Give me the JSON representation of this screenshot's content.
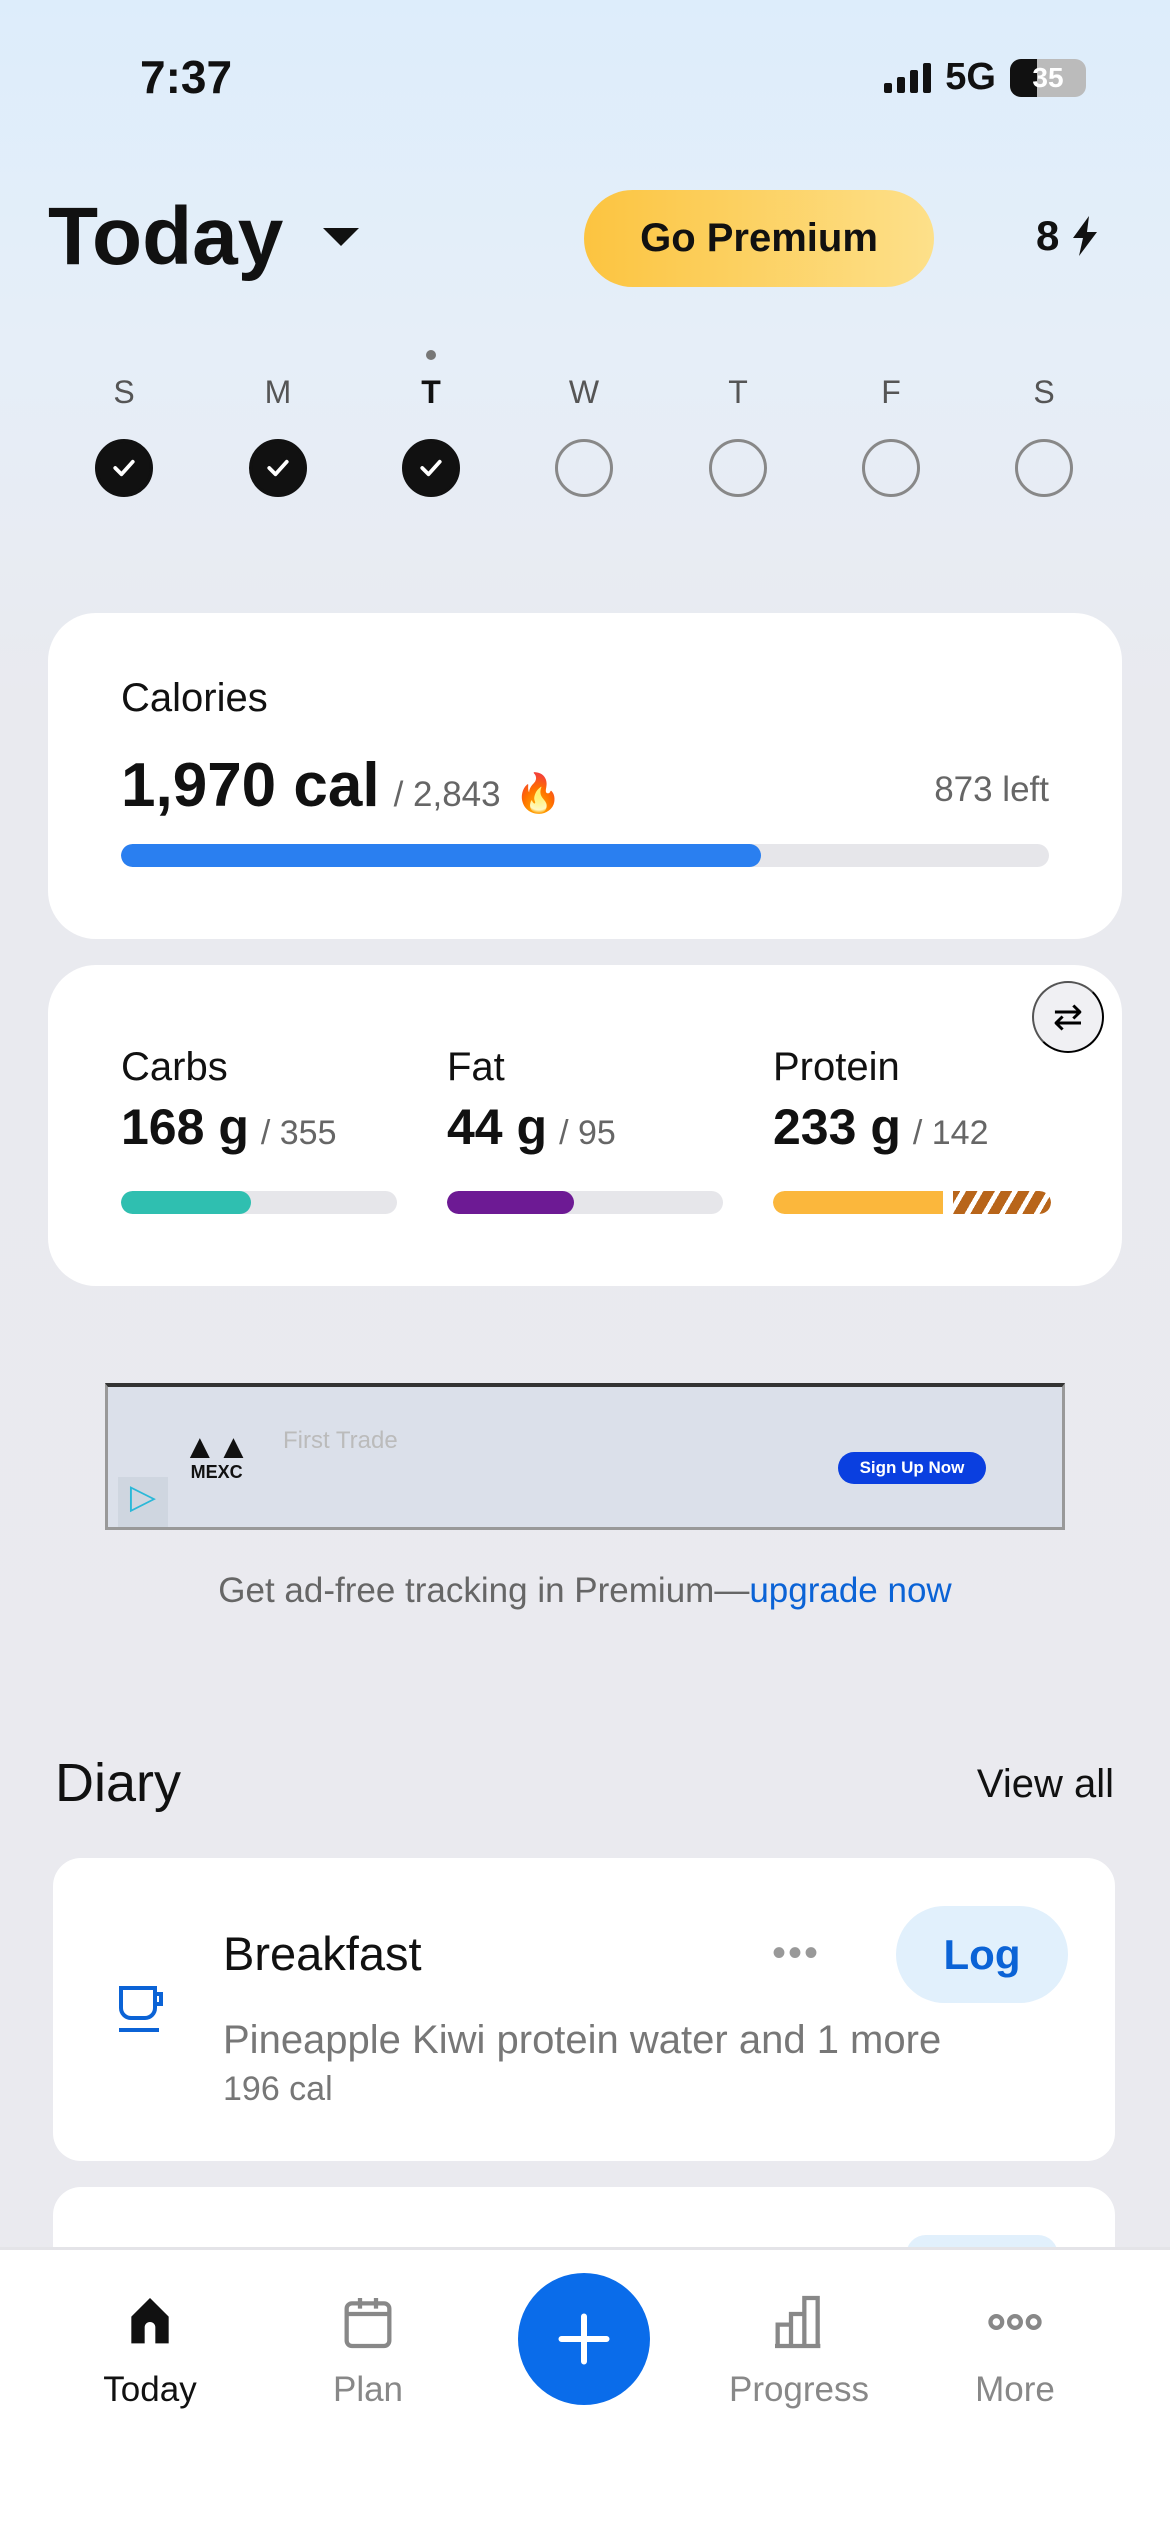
{
  "status_bar": {
    "time": "7:37",
    "network": "5G",
    "battery": "35"
  },
  "header": {
    "title": "Today",
    "premium_label": "Go Premium",
    "streak": "8"
  },
  "week": {
    "days": [
      {
        "letter": "S",
        "done": true
      },
      {
        "letter": "M",
        "done": true
      },
      {
        "letter": "T",
        "done": true,
        "current": true
      },
      {
        "letter": "W",
        "done": false
      },
      {
        "letter": "T",
        "done": false
      },
      {
        "letter": "F",
        "done": false
      },
      {
        "letter": "S",
        "done": false
      }
    ]
  },
  "calories": {
    "label": "Calories",
    "consumed": "1,970 cal",
    "goal": "/ 2,843",
    "left": "873 left",
    "progress": 0.69,
    "color": "#2a7ff0"
  },
  "macros": [
    {
      "label": "Carbs",
      "value": "168 g",
      "goal": "/ 355",
      "progress": 0.47,
      "color": "#2fbfb0"
    },
    {
      "label": "Fat",
      "value": "44 g",
      "goal": "/ 95",
      "progress": 0.46,
      "color": "#6d1a94"
    },
    {
      "label": "Protein",
      "value": "233 g",
      "goal": "/ 142",
      "progress": 1.64,
      "color": "#fbb73c",
      "over_color": "#b8651a"
    }
  ],
  "ad": {
    "brand": "MEXC",
    "headline": "First Trade",
    "cta": "Sign Up Now"
  },
  "adfree": {
    "text": "Get ad-free tracking in Premium—",
    "link": "upgrade now"
  },
  "diary": {
    "title": "Diary",
    "view_all": "View all",
    "meals": [
      {
        "name": "Breakfast",
        "description": "Pineapple Kiwi protein water and 1 more",
        "calories": "196 cal",
        "log_label": "Log"
      }
    ]
  },
  "nav": {
    "items": [
      {
        "label": "Today"
      },
      {
        "label": "Plan"
      },
      {
        "label": "Progress"
      },
      {
        "label": "More"
      }
    ]
  }
}
